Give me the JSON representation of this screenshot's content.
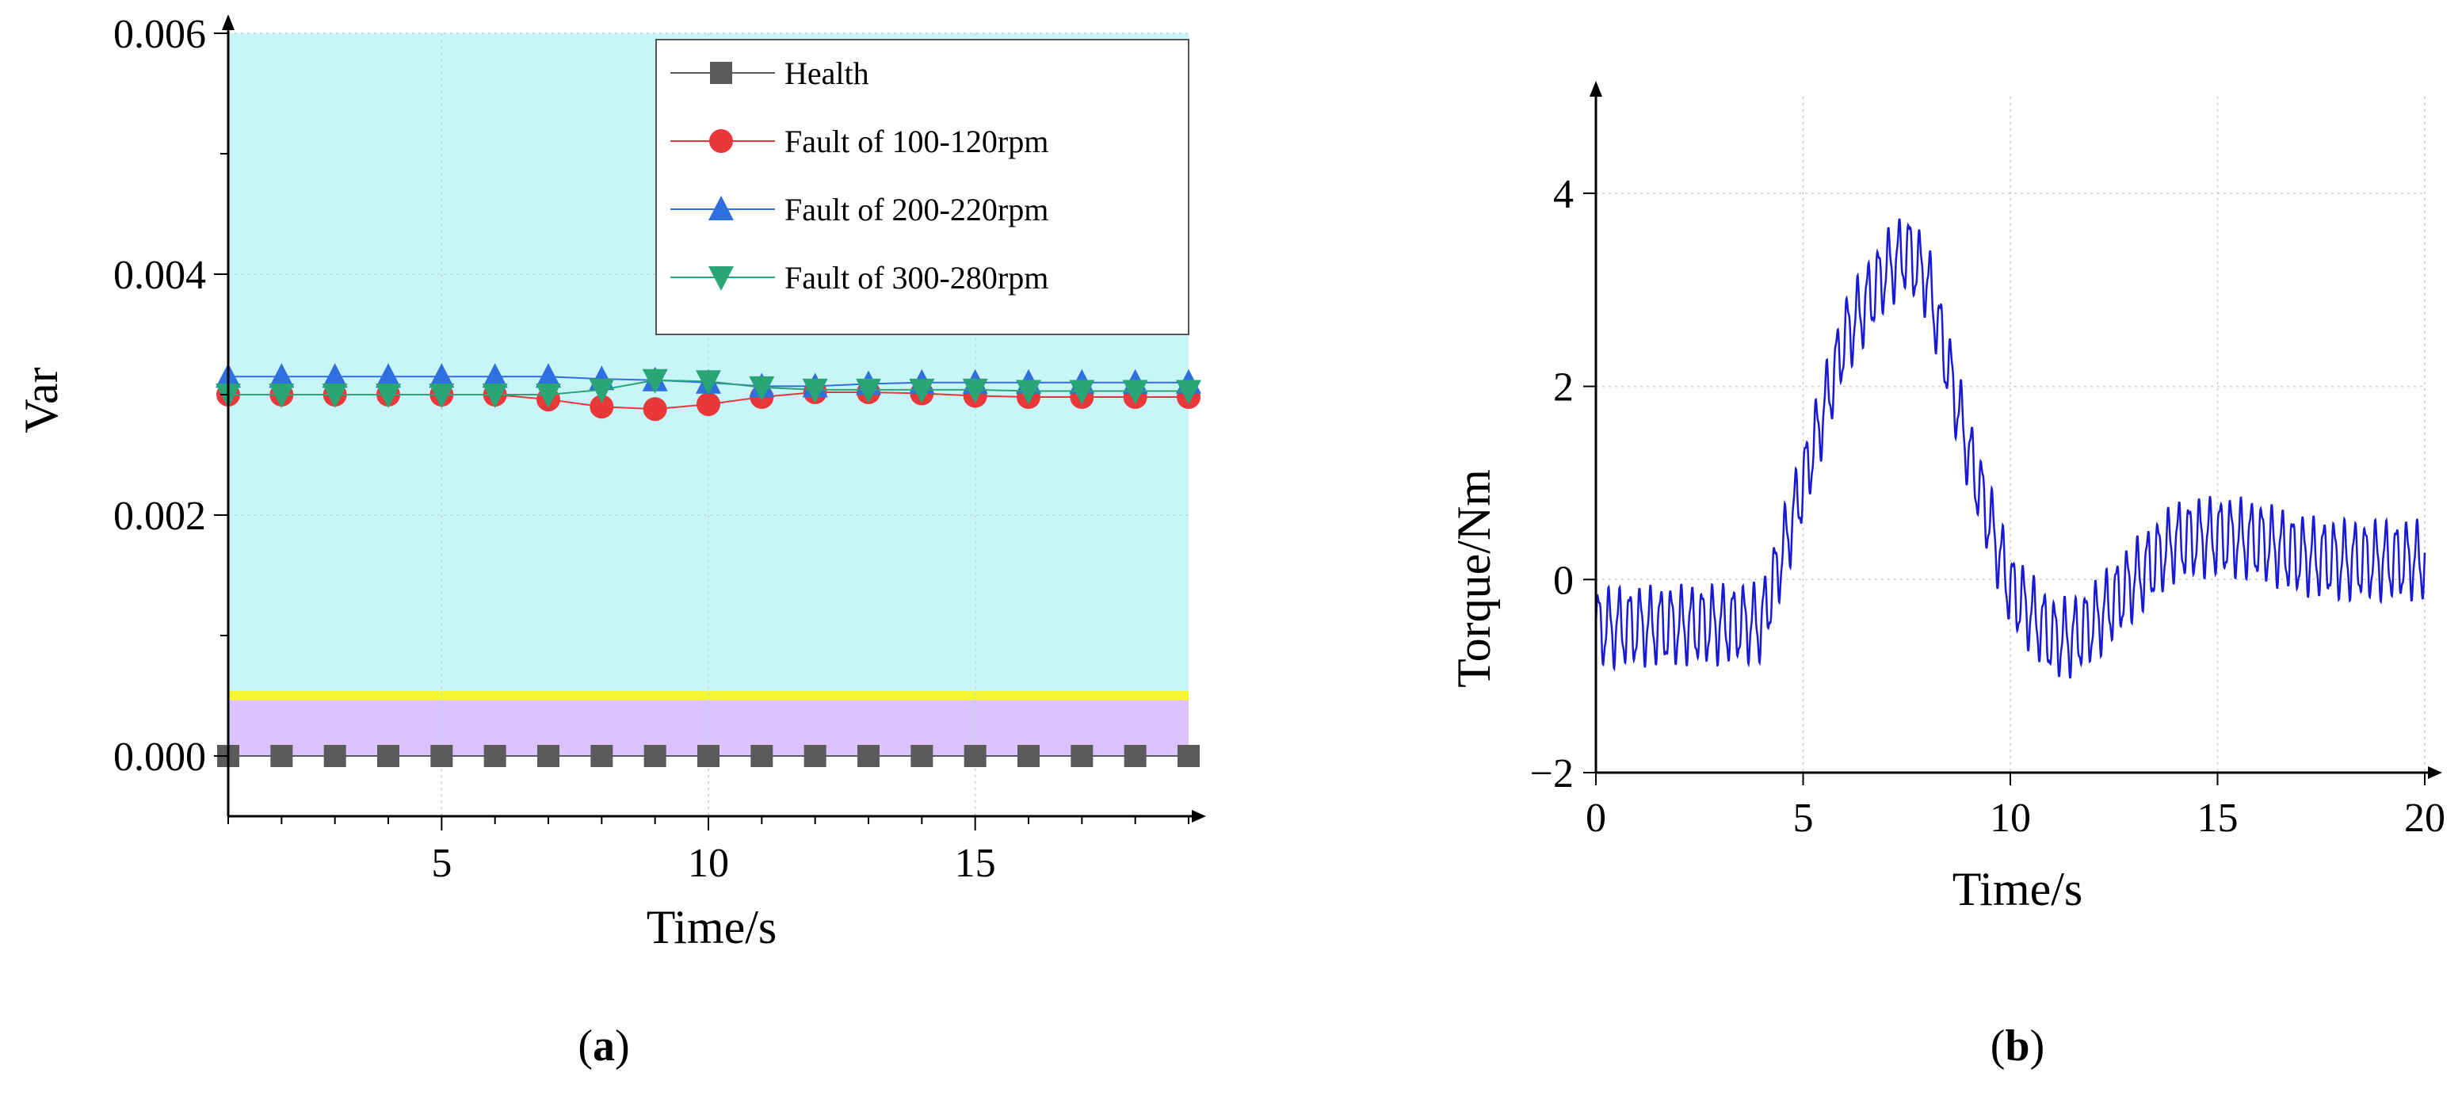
{
  "chart_data": [
    {
      "panel_label": "(a)",
      "label_parts": {
        "open": "(",
        "letter": "a",
        "close": ")"
      },
      "type": "line",
      "xlabel": "Time/s",
      "ylabel": "Var",
      "xlim": [
        1,
        19
      ],
      "ylim": [
        -0.0005,
        0.006
      ],
      "xticks": [
        5,
        10,
        15
      ],
      "xtick_labels": [
        "5",
        "10",
        "15"
      ],
      "yticks": [
        0,
        0.002,
        0.004,
        0.006
      ],
      "ytick_labels": [
        "0.000",
        "0.002",
        "0.004",
        "0.006"
      ],
      "shaded_regions": [
        {
          "name": "fault-zone",
          "from": 0.0005,
          "to": 0.006,
          "color": "#c8f6f8"
        },
        {
          "name": "threshold-band",
          "from": 0.00046,
          "to": 0.00054,
          "color": "#f5f532"
        },
        {
          "name": "health-zone",
          "from": 0.0,
          "to": 0.00046,
          "color": "#dcc2ff"
        }
      ],
      "x": [
        1,
        2,
        3,
        4,
        5,
        6,
        7,
        8,
        9,
        10,
        11,
        12,
        13,
        14,
        15,
        16,
        17,
        18,
        19
      ],
      "series": [
        {
          "name": "Health",
          "color": "#5a5a5a",
          "marker": "square",
          "values": [
            0,
            0,
            0,
            0,
            0,
            0,
            0,
            0,
            0,
            0,
            0,
            0,
            0,
            0,
            0,
            0,
            0,
            0,
            0
          ]
        },
        {
          "name": "Fault of 100-120rpm",
          "color": "#e8383a",
          "marker": "circle",
          "values": [
            0.003,
            0.003,
            0.003,
            0.003,
            0.003,
            0.003,
            0.00296,
            0.0029,
            0.00288,
            0.00292,
            0.00298,
            0.00302,
            0.00302,
            0.00301,
            0.00299,
            0.00298,
            0.00298,
            0.00298,
            0.00298
          ]
        },
        {
          "name": "Fault of 200-220rpm",
          "color": "#2f6fe0",
          "marker": "triangle-up",
          "values": [
            0.00315,
            0.00315,
            0.00315,
            0.00315,
            0.00315,
            0.00315,
            0.00315,
            0.00313,
            0.00312,
            0.0031,
            0.00307,
            0.00307,
            0.00309,
            0.0031,
            0.0031,
            0.0031,
            0.0031,
            0.0031,
            0.0031
          ]
        },
        {
          "name": "Fault of 300-280rpm",
          "color": "#2aa676",
          "marker": "triangle-down",
          "values": [
            0.003,
            0.003,
            0.003,
            0.003,
            0.003,
            0.003,
            0.003,
            0.00304,
            0.00312,
            0.00311,
            0.00306,
            0.00304,
            0.00304,
            0.00304,
            0.00304,
            0.00303,
            0.00303,
            0.00303,
            0.00303
          ]
        }
      ],
      "legend_position": "top-right",
      "grid": true
    },
    {
      "panel_label": "(b)",
      "label_parts": {
        "open": "(",
        "letter": "b",
        "close": ")"
      },
      "type": "line",
      "xlabel": "Time/s",
      "ylabel": "Torque/Nm",
      "xlim": [
        0,
        20
      ],
      "ylim": [
        -2,
        5
      ],
      "xticks": [
        0,
        5,
        10,
        15,
        20
      ],
      "xtick_labels": [
        "0",
        "5",
        "10",
        "15",
        "20"
      ],
      "yticks": [
        -2,
        0,
        2,
        4
      ],
      "ytick_labels": [
        "−2",
        "0",
        "2",
        "4"
      ],
      "grid": true,
      "series": [
        {
          "name": "Torque",
          "color": "#1a1ad6",
          "envelope": {
            "t": [
              0,
              4,
              5,
              6,
              7,
              7.5,
              8,
              9,
              10,
              11,
              11.5,
              12,
              13,
              14,
              15,
              16,
              17,
              18,
              19,
              20
            ],
            "mean": [
              -0.5,
              -0.45,
              1.0,
              2.5,
              3.2,
              3.4,
              3.1,
              1.3,
              -0.1,
              -0.6,
              -0.6,
              -0.45,
              0.0,
              0.4,
              0.45,
              0.4,
              0.25,
              0.2,
              0.2,
              0.2
            ],
            "amplitude": 0.35,
            "oscillation_period": 0.25
          }
        }
      ]
    }
  ]
}
